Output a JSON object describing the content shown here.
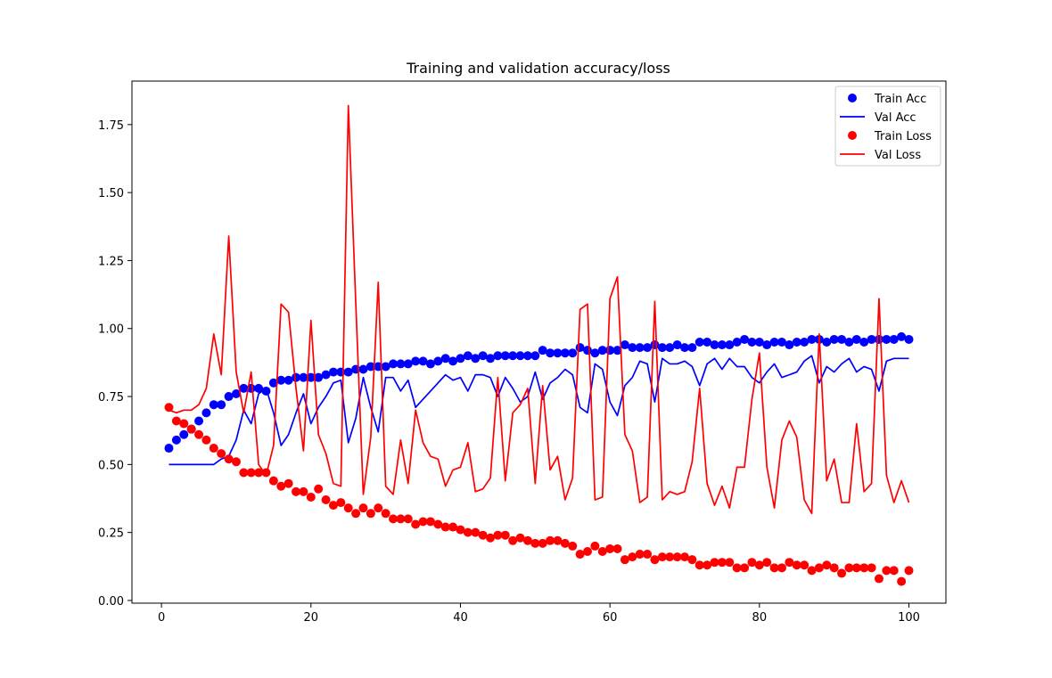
{
  "chart_data": {
    "type": "line",
    "title": "Training and validation accuracy/loss",
    "xlabel": "",
    "ylabel": "",
    "xlim": [
      -3.95,
      104.95
    ],
    "ylim": [
      -0.01,
      1.91
    ],
    "x_ticks": [
      0,
      20,
      40,
      60,
      80,
      100
    ],
    "x_tick_labels": [
      "0",
      "20",
      "40",
      "60",
      "80",
      "100"
    ],
    "y_ticks": [
      0.0,
      0.25,
      0.5,
      0.75,
      1.0,
      1.25,
      1.5,
      1.75
    ],
    "y_tick_labels": [
      "0.00",
      "0.25",
      "0.50",
      "0.75",
      "1.00",
      "1.25",
      "1.50",
      "1.75"
    ],
    "grid": false,
    "legend_position": "top-right",
    "x": [
      1,
      2,
      3,
      4,
      5,
      6,
      7,
      8,
      9,
      10,
      11,
      12,
      13,
      14,
      15,
      16,
      17,
      18,
      19,
      20,
      21,
      22,
      23,
      24,
      25,
      26,
      27,
      28,
      29,
      30,
      31,
      32,
      33,
      34,
      35,
      36,
      37,
      38,
      39,
      40,
      41,
      42,
      43,
      44,
      45,
      46,
      47,
      48,
      49,
      50,
      51,
      52,
      53,
      54,
      55,
      56,
      57,
      58,
      59,
      60,
      61,
      62,
      63,
      64,
      65,
      66,
      67,
      68,
      69,
      70,
      71,
      72,
      73,
      74,
      75,
      76,
      77,
      78,
      79,
      80,
      81,
      82,
      83,
      84,
      85,
      86,
      87,
      88,
      89,
      90,
      91,
      92,
      93,
      94,
      95,
      96,
      97,
      98,
      99,
      100
    ],
    "series": [
      {
        "name": "Train Acc",
        "style": "markers",
        "color": "#0000ff",
        "values": [
          0.56,
          0.59,
          0.61,
          0.63,
          0.66,
          0.69,
          0.72,
          0.72,
          0.75,
          0.76,
          0.78,
          0.78,
          0.78,
          0.77,
          0.8,
          0.81,
          0.81,
          0.82,
          0.82,
          0.82,
          0.82,
          0.83,
          0.84,
          0.84,
          0.84,
          0.85,
          0.85,
          0.86,
          0.86,
          0.86,
          0.87,
          0.87,
          0.87,
          0.88,
          0.88,
          0.87,
          0.88,
          0.89,
          0.88,
          0.89,
          0.9,
          0.89,
          0.9,
          0.89,
          0.9,
          0.9,
          0.9,
          0.9,
          0.9,
          0.9,
          0.92,
          0.91,
          0.91,
          0.91,
          0.91,
          0.93,
          0.92,
          0.91,
          0.92,
          0.92,
          0.92,
          0.94,
          0.93,
          0.93,
          0.93,
          0.94,
          0.93,
          0.93,
          0.94,
          0.93,
          0.93,
          0.95,
          0.95,
          0.94,
          0.94,
          0.94,
          0.95,
          0.96,
          0.95,
          0.95,
          0.94,
          0.95,
          0.95,
          0.94,
          0.95,
          0.95,
          0.96,
          0.96,
          0.95,
          0.96,
          0.96,
          0.95,
          0.96,
          0.95,
          0.96,
          0.96,
          0.96,
          0.96,
          0.97,
          0.96
        ]
      },
      {
        "name": "Val Acc",
        "style": "line",
        "color": "#0000ff",
        "values": [
          0.5,
          0.5,
          0.5,
          0.5,
          0.5,
          0.5,
          0.5,
          0.52,
          0.53,
          0.59,
          0.7,
          0.65,
          0.76,
          0.78,
          0.69,
          0.57,
          0.61,
          0.69,
          0.76,
          0.65,
          0.71,
          0.75,
          0.8,
          0.81,
          0.58,
          0.67,
          0.82,
          0.71,
          0.62,
          0.82,
          0.82,
          0.77,
          0.81,
          0.71,
          0.74,
          0.77,
          0.8,
          0.83,
          0.81,
          0.82,
          0.77,
          0.83,
          0.83,
          0.82,
          0.75,
          0.82,
          0.78,
          0.73,
          0.75,
          0.84,
          0.74,
          0.8,
          0.82,
          0.85,
          0.83,
          0.71,
          0.69,
          0.87,
          0.85,
          0.73,
          0.68,
          0.79,
          0.82,
          0.88,
          0.87,
          0.73,
          0.89,
          0.87,
          0.87,
          0.88,
          0.86,
          0.79,
          0.87,
          0.89,
          0.85,
          0.89,
          0.86,
          0.86,
          0.82,
          0.8,
          0.84,
          0.87,
          0.82,
          0.83,
          0.84,
          0.88,
          0.9,
          0.8,
          0.86,
          0.84,
          0.87,
          0.89,
          0.84,
          0.86,
          0.85,
          0.77,
          0.88,
          0.89,
          0.89,
          0.89
        ]
      },
      {
        "name": "Train Loss",
        "style": "markers",
        "color": "#ff0000",
        "values": [
          0.71,
          0.66,
          0.65,
          0.63,
          0.61,
          0.59,
          0.56,
          0.54,
          0.52,
          0.51,
          0.47,
          0.47,
          0.47,
          0.47,
          0.44,
          0.42,
          0.43,
          0.4,
          0.4,
          0.38,
          0.41,
          0.37,
          0.35,
          0.36,
          0.34,
          0.32,
          0.34,
          0.32,
          0.34,
          0.32,
          0.3,
          0.3,
          0.3,
          0.28,
          0.29,
          0.29,
          0.28,
          0.27,
          0.27,
          0.26,
          0.25,
          0.25,
          0.24,
          0.23,
          0.24,
          0.24,
          0.22,
          0.23,
          0.22,
          0.21,
          0.21,
          0.22,
          0.22,
          0.21,
          0.2,
          0.17,
          0.18,
          0.2,
          0.18,
          0.19,
          0.19,
          0.15,
          0.16,
          0.17,
          0.17,
          0.15,
          0.16,
          0.16,
          0.16,
          0.16,
          0.15,
          0.13,
          0.13,
          0.14,
          0.14,
          0.14,
          0.12,
          0.12,
          0.14,
          0.13,
          0.14,
          0.12,
          0.12,
          0.14,
          0.13,
          0.13,
          0.11,
          0.12,
          0.13,
          0.12,
          0.1,
          0.12,
          0.12,
          0.12,
          0.12,
          0.08,
          0.11,
          0.11,
          0.07,
          0.11
        ]
      },
      {
        "name": "Val Loss",
        "style": "line",
        "color": "#ff0000",
        "values": [
          0.7,
          0.69,
          0.7,
          0.7,
          0.72,
          0.78,
          0.98,
          0.83,
          1.34,
          0.84,
          0.69,
          0.84,
          0.5,
          0.46,
          0.57,
          1.09,
          1.06,
          0.78,
          0.55,
          1.03,
          0.61,
          0.54,
          0.43,
          0.42,
          1.82,
          1.09,
          0.39,
          0.6,
          1.17,
          0.42,
          0.39,
          0.59,
          0.43,
          0.7,
          0.58,
          0.53,
          0.52,
          0.42,
          0.48,
          0.49,
          0.58,
          0.4,
          0.41,
          0.45,
          0.82,
          0.44,
          0.69,
          0.72,
          0.78,
          0.43,
          0.79,
          0.48,
          0.53,
          0.37,
          0.45,
          1.07,
          1.09,
          0.37,
          0.38,
          1.11,
          1.19,
          0.61,
          0.55,
          0.36,
          0.38,
          1.1,
          0.37,
          0.4,
          0.39,
          0.4,
          0.51,
          0.78,
          0.43,
          0.35,
          0.42,
          0.34,
          0.49,
          0.49,
          0.74,
          0.91,
          0.49,
          0.34,
          0.59,
          0.66,
          0.6,
          0.37,
          0.32,
          0.98,
          0.44,
          0.52,
          0.36,
          0.36,
          0.65,
          0.4,
          0.43,
          1.11,
          0.46,
          0.36,
          0.44,
          0.36
        ]
      }
    ]
  }
}
